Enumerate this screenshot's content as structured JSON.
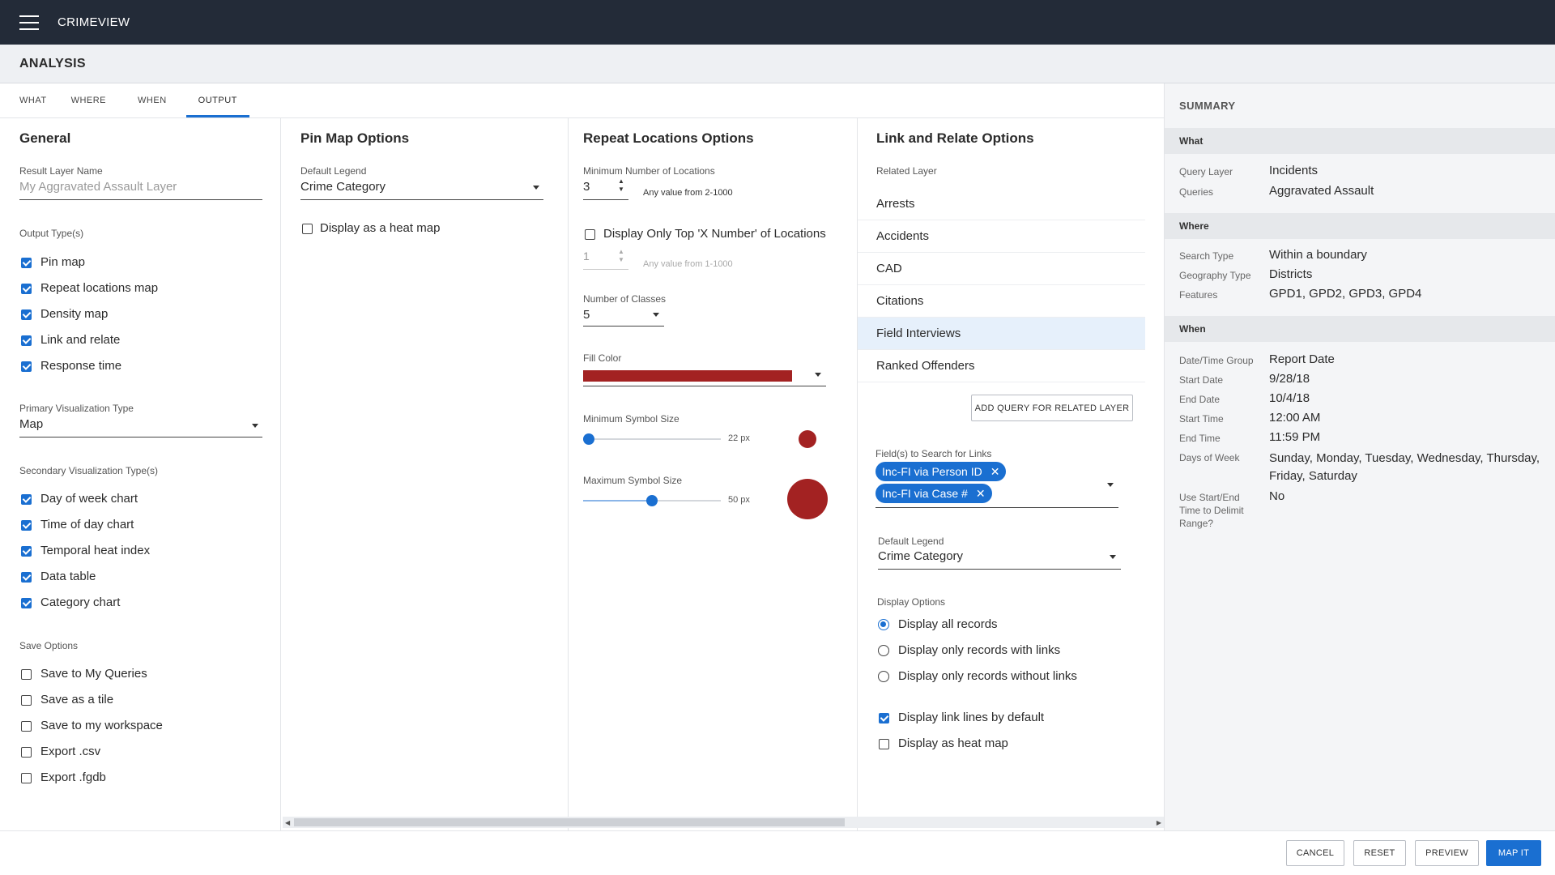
{
  "app": {
    "title": "CRIMEVIEW"
  },
  "header": {
    "title": "ANALYSIS"
  },
  "tabs": [
    {
      "label": "WHAT"
    },
    {
      "label": "WHERE"
    },
    {
      "label": "WHEN"
    },
    {
      "label": "OUTPUT",
      "active": true
    }
  ],
  "general": {
    "title": "General",
    "result_layer_label": "Result Layer Name",
    "result_layer_placeholder": "My Aggravated Assault Layer",
    "output_types_label": "Output Type(s)",
    "output_types": [
      {
        "label": "Pin map",
        "checked": true
      },
      {
        "label": "Repeat locations map",
        "checked": true
      },
      {
        "label": "Density map",
        "checked": true
      },
      {
        "label": "Link and relate",
        "checked": true
      },
      {
        "label": "Response time",
        "checked": true
      }
    ],
    "primary_vis_label": "Primary Visualization Type",
    "primary_vis_value": "Map",
    "secondary_vis_label": "Secondary Visualization Type(s)",
    "secondary_vis": [
      {
        "label": "Day of week chart",
        "checked": true
      },
      {
        "label": "Time of day chart",
        "checked": true
      },
      {
        "label": "Temporal heat index",
        "checked": true
      },
      {
        "label": "Data table",
        "checked": true
      },
      {
        "label": "Category chart",
        "checked": true
      }
    ],
    "save_options_label": "Save Options",
    "save_options": [
      {
        "label": "Save to My Queries",
        "checked": false
      },
      {
        "label": "Save as a tile",
        "checked": false
      },
      {
        "label": "Save to my workspace",
        "checked": false
      },
      {
        "label": "Export .csv",
        "checked": false
      },
      {
        "label": "Export .fgdb",
        "checked": false
      }
    ]
  },
  "pin_map": {
    "title": "Pin Map Options",
    "legend_label": "Default Legend",
    "legend_value": "Crime Category",
    "heatmap_label": "Display as a heat map",
    "heatmap_checked": false
  },
  "repeat": {
    "title": "Repeat Locations Options",
    "min_locations_label": "Minimum Number of Locations",
    "min_locations_value": "3",
    "min_locations_hint": "Any value from 2-1000",
    "top_x_label": "Display Only Top 'X Number' of Locations",
    "top_x_checked": false,
    "top_x_value": "1",
    "top_x_hint": "Any value from 1-1000",
    "classes_label": "Number of Classes",
    "classes_value": "5",
    "fill_color_label": "Fill Color",
    "fill_color": "#a32222",
    "min_symbol_label": "Minimum Symbol Size",
    "min_symbol_value": "22 px",
    "min_symbol_fraction": 0.0,
    "max_symbol_label": "Maximum Symbol Size",
    "max_symbol_value": "50 px",
    "max_symbol_fraction": 0.5
  },
  "link": {
    "title": "Link and Relate Options",
    "related_layer_label": "Related Layer",
    "layers": [
      {
        "label": "Arrests",
        "selected": false
      },
      {
        "label": "Accidents",
        "selected": false
      },
      {
        "label": "CAD",
        "selected": false
      },
      {
        "label": "Citations",
        "selected": false
      },
      {
        "label": "Field Interviews",
        "selected": true
      },
      {
        "label": "Ranked Offenders",
        "selected": false
      }
    ],
    "add_query_label": "ADD QUERY FOR RELATED LAYER",
    "fields_label": "Field(s) to Search for Links",
    "chips": [
      "Inc-FI via Person ID",
      "Inc-FI via Case #"
    ],
    "legend_label": "Default Legend",
    "legend_value": "Crime Category",
    "display_options_label": "Display Options",
    "display_options": [
      {
        "label": "Display all records",
        "selected": true
      },
      {
        "label": "Display only records with links",
        "selected": false
      },
      {
        "label": "Display only records without links",
        "selected": false
      }
    ],
    "link_lines_label": "Display link lines by default",
    "link_lines_checked": true,
    "heatmap_label": "Display as heat map",
    "heatmap_checked": false
  },
  "summary": {
    "title": "SUMMARY",
    "what_label": "What",
    "what": [
      {
        "key": "Query Layer",
        "value": "Incidents"
      },
      {
        "key": "Queries",
        "value": "Aggravated Assault"
      }
    ],
    "where_label": "Where",
    "where": [
      {
        "key": "Search Type",
        "value": "Within a boundary"
      },
      {
        "key": "Geography Type",
        "value": "Districts"
      },
      {
        "key": "Features",
        "value": "GPD1, GPD2, GPD3, GPD4"
      }
    ],
    "when_label": "When",
    "when": [
      {
        "key": "Date/Time Group",
        "value": "Report Date"
      },
      {
        "key": "Start Date",
        "value": "9/28/18"
      },
      {
        "key": "End Date",
        "value": "10/4/18"
      },
      {
        "key": "Start Time",
        "value": "12:00 AM"
      },
      {
        "key": "End Time",
        "value": "11:59 PM"
      },
      {
        "key": "Days of Week",
        "value": "Sunday, Monday, Tuesday, Wednesday, Thursday, Friday, Saturday"
      },
      {
        "key": "Use Start/End Time to Delimit Range?",
        "value": "No"
      }
    ]
  },
  "footer": {
    "cancel": "CANCEL",
    "reset": "RESET",
    "preview": "PREVIEW",
    "map_it": "MAP IT"
  },
  "colors": {
    "accent": "#1a6fd1",
    "topbar": "#232b38",
    "selected_row": "#e6f0fb"
  }
}
